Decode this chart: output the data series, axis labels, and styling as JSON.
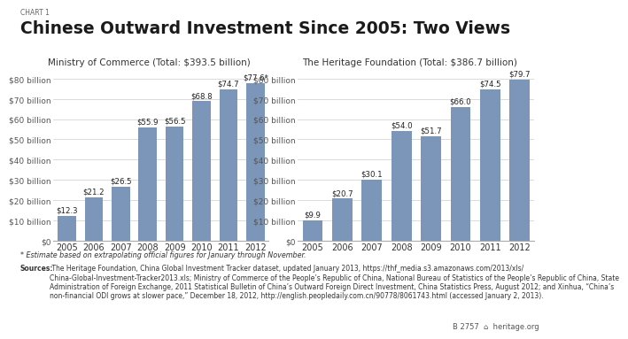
{
  "chart_label": "CHART 1",
  "title": "Chinese Outward Investment Since 2005: Two Views",
  "left_subtitle": "Ministry of Commerce (Total: $393.5 billion)",
  "right_subtitle": "The Heritage Foundation (Total: $386.7 billion)",
  "years": [
    "2005",
    "2006",
    "2007",
    "2008",
    "2009",
    "2010",
    "2011",
    "2012"
  ],
  "left_values": [
    12.3,
    21.2,
    26.5,
    55.9,
    56.5,
    68.8,
    74.7,
    77.6
  ],
  "right_values": [
    9.9,
    20.7,
    30.1,
    54.0,
    51.7,
    66.0,
    74.5,
    79.7
  ],
  "left_labels": [
    "$12.3",
    "$21.2",
    "$26.5",
    "$55.9",
    "$56.5",
    "$68.8",
    "$74.7",
    "$77.6*"
  ],
  "right_labels": [
    "$9.9",
    "$20.7",
    "$30.1",
    "$54.0",
    "$51.7",
    "$66.0",
    "$74.5",
    "$79.7"
  ],
  "bar_color": "#7b96b8",
  "yticks": [
    0,
    10,
    20,
    30,
    40,
    50,
    60,
    70,
    80
  ],
  "ylabels": [
    "$0",
    "$10 billion",
    "$20 billion",
    "$30 billion",
    "$40 billion",
    "$50 billion",
    "$60 billion",
    "$70 billion",
    "$80 billion"
  ],
  "ylim": [
    0,
    87
  ],
  "footnote": "* Estimate based on extrapolating official figures for January through November.",
  "sources_bold": "Sources:",
  "sources_rest": " The Heritage Foundation, China Global Investment Tracker dataset, updated January 2013, https://thf_media.s3.amazonaws.com/2013/xls/\nChina-Global-Investment-Tracker2013.xls; Ministry of Commerce of the People’s Republic of China, National Bureau of Statistics of the People’s Republic of China, State\nAdministration of Foreign Exchange, 2011 Statistical Bulletin of China’s Outward Foreign Direct Investment, China Statistics Press, August 2012; and Xinhua, “China’s\nnon-financial ODI grows at slower pace,” December 18, 2012, http://english.peopledaily.com.cn/90778/8061743.html (accessed January 2, 2013).",
  "badge": "B 2757",
  "background_color": "#ffffff"
}
